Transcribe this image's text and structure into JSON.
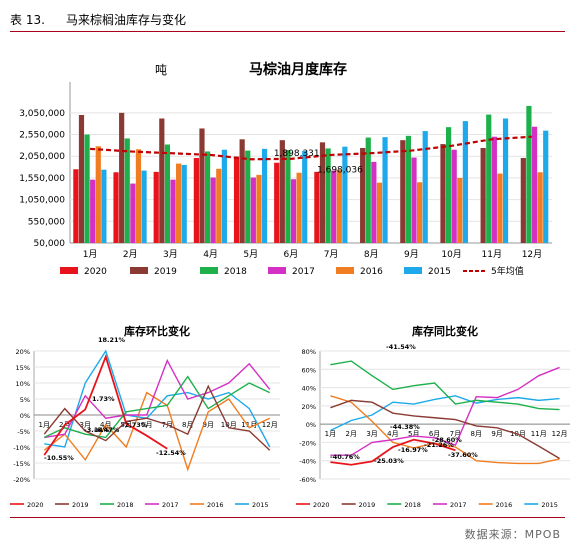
{
  "header": {
    "label": "表 13.",
    "title": "马来棕榈油库存与变化"
  },
  "source": "数据来源：MPOB",
  "colors": {
    "2020": "#e8141b",
    "2019": "#8b3a33",
    "2018": "#1db04b",
    "2017": "#d431c4",
    "2016": "#f07d22",
    "2015": "#1eaaea",
    "avg": "#c00000"
  },
  "chart_data": [
    {
      "type": "bar",
      "title": "马棕油月度库存",
      "ylabel": "吨",
      "categories": [
        "1月",
        "2月",
        "3月",
        "4月",
        "5月",
        "6月",
        "7月",
        "8月",
        "9月",
        "10月",
        "11月",
        "12月"
      ],
      "yticks": [
        "50,000",
        "550,000",
        "1,050,000",
        "1,550,000",
        "2,050,000",
        "2,550,000",
        "3,050,000"
      ],
      "ylim": [
        50000,
        3300000
      ],
      "series": [
        {
          "name": "2020",
          "values": [
            1750000,
            1680000,
            1690000,
            2010000,
            2040000,
            1900000,
            1690000,
            null,
            null,
            null,
            null,
            null
          ]
        },
        {
          "name": "2019",
          "values": [
            3000000,
            3050000,
            2920000,
            2690000,
            2440000,
            2420000,
            2370000,
            2240000,
            2420000,
            2330000,
            2240000,
            2010000
          ]
        },
        {
          "name": "2018",
          "values": [
            2550000,
            2460000,
            2320000,
            2160000,
            2180000,
            2190000,
            2230000,
            2480000,
            2520000,
            2720000,
            3010000,
            3210000
          ]
        },
        {
          "name": "2017",
          "values": [
            1510000,
            1420000,
            1510000,
            1560000,
            1560000,
            1520000,
            1720000,
            1920000,
            2020000,
            2200000,
            2500000,
            2730000
          ]
        },
        {
          "name": "2016",
          "values": [
            2280000,
            2210000,
            1880000,
            1760000,
            1620000,
            1670000,
            1740000,
            1440000,
            1450000,
            1550000,
            1650000,
            1680000
          ]
        },
        {
          "name": "2015",
          "values": [
            1740000,
            1720000,
            1850000,
            2200000,
            2220000,
            2170000,
            2270000,
            2490000,
            2630000,
            2860000,
            2920000,
            2640000
          ]
        },
        {
          "name": "5年均值",
          "type": "line",
          "values": [
            2220000,
            2160000,
            2120000,
            2080000,
            1980000,
            1990000,
            2080000,
            2120000,
            2180000,
            2290000,
            2440000,
            2500000
          ]
        }
      ],
      "annotations": [
        "1,898,331",
        "1,698,036"
      ]
    },
    {
      "type": "line",
      "title": "库存环比变化",
      "categories": [
        "1月",
        "2月",
        "3月",
        "4月",
        "5月",
        "6月",
        "7月",
        "8月",
        "9月",
        "10月",
        "11月",
        "12月"
      ],
      "yticks": [
        "-20%",
        "-15%",
        "-10%",
        "-5%",
        "0%",
        "5%",
        "10%",
        "15%",
        "20%"
      ],
      "ylim": [
        -20,
        20
      ],
      "series": [
        {
          "name": "2020",
          "values": [
            -12.54,
            -3.14,
            1.73,
            18.21,
            -2.73,
            -6.47,
            -10.55,
            null,
            null,
            null,
            null,
            null
          ]
        },
        {
          "name": "2019",
          "values": [
            -6,
            2,
            -5,
            -8,
            -2,
            -1,
            -3,
            -6,
            9,
            -4,
            -5,
            -11
          ]
        },
        {
          "name": "2018",
          "values": [
            -7,
            -4,
            -6,
            -7,
            1,
            2,
            3,
            12,
            2,
            6,
            10,
            7
          ]
        },
        {
          "name": "2017",
          "values": [
            -7,
            -6,
            6,
            -1,
            0,
            0,
            17,
            5,
            7,
            10,
            16,
            8
          ]
        },
        {
          "name": "2016",
          "values": [
            -11,
            -6,
            -14,
            -3,
            -10,
            7,
            3,
            -17,
            1,
            5,
            -4,
            -1
          ]
        },
        {
          "name": "2015",
          "values": [
            -9,
            -10,
            10,
            20,
            0,
            -1,
            6,
            7,
            5,
            7,
            2,
            -10
          ]
        }
      ],
      "data_labels": [
        "18.21%",
        "1.73%",
        "-2.73%",
        "-6.47%",
        "-10.55%",
        "-3.14%",
        "-12.54%"
      ]
    },
    {
      "type": "line",
      "title": "库存同比变化",
      "categories": [
        "1月",
        "2月",
        "3月",
        "4月",
        "5月",
        "6月",
        "7月",
        "8月",
        "9月",
        "10月",
        "11月",
        "12月"
      ],
      "yticks": [
        "-60%",
        "-40%",
        "-20%",
        "0%",
        "20%",
        "40%",
        "60%",
        "80%"
      ],
      "ylim": [
        -60,
        80
      ],
      "series": [
        {
          "name": "2020",
          "values": [
            -41.54,
            -44.38,
            -40.76,
            -25.03,
            -16.97,
            -21.26,
            -28.6,
            null,
            null,
            null,
            null,
            null
          ]
        },
        {
          "name": "2019",
          "values": [
            18,
            26,
            24,
            12,
            9,
            7,
            5,
            -2,
            -4,
            -11,
            -24,
            -37.6
          ]
        },
        {
          "name": "2018",
          "values": [
            65,
            69,
            53,
            38,
            42,
            45,
            22,
            26,
            24,
            22,
            17,
            16
          ]
        },
        {
          "name": "2017",
          "values": [
            -34,
            -34,
            -20,
            -17,
            -13,
            -15,
            -23,
            30,
            29,
            38,
            53,
            62
          ]
        },
        {
          "name": "2016",
          "values": [
            31,
            24,
            3,
            -20,
            -26,
            -21,
            -25,
            -40,
            -42,
            -43,
            -43,
            -38
          ]
        },
        {
          "name": "2015",
          "values": [
            -7,
            4,
            10,
            24,
            22,
            27,
            31,
            23,
            27,
            29,
            26,
            28
          ]
        }
      ],
      "data_labels": [
        "-41.54%",
        "-44.38%",
        "-40.76%",
        "-25.03%",
        "-16.97%",
        "-21.26%",
        "-28.60%",
        "-37.60%"
      ]
    }
  ]
}
